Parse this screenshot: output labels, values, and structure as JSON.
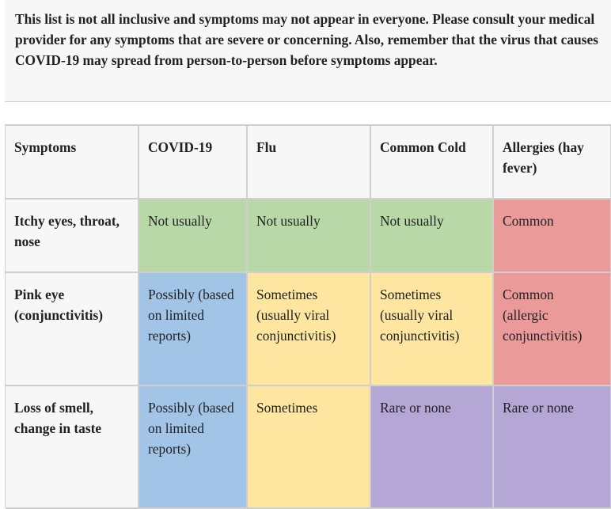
{
  "notice": "This list is not all inclusive and symptoms may not appear in everyone. Please consult your medical provider for any symptoms that are severe or concerning. Also, remember that the virus that causes COVID-19 may spread from person-to-person before symptoms appear.",
  "table": {
    "headers": [
      "Symptoms",
      "COVID-19",
      "Flu",
      "Common Cold",
      "Allergies (hay fever)"
    ],
    "rows": [
      {
        "symptom": "Itchy eyes, throat, nose",
        "cells": [
          "Not usually",
          "Not usually",
          "Not usually",
          "Common"
        ],
        "colors": [
          "green",
          "green",
          "green",
          "red"
        ]
      },
      {
        "symptom": "Pink eye (conjunctivitis)",
        "cells": [
          "Possibly (based on limited reports)",
          "Sometimes (usually viral conjunctivitis)",
          "Sometimes (usually viral conjunctivitis)",
          "Common (allergic conjunctivitis)"
        ],
        "colors": [
          "blue",
          "yellow",
          "yellow",
          "red"
        ]
      },
      {
        "symptom": "Loss of smell, change in taste",
        "cells": [
          "Possibly (based on limited reports)",
          "Sometimes",
          "Rare or none",
          "Rare or none"
        ],
        "colors": [
          "blue",
          "yellow",
          "purple",
          "purple"
        ]
      }
    ]
  },
  "colors": {
    "green": "#b9d8a8",
    "red": "#ea9a99",
    "blue": "#a2c4e7",
    "yellow": "#fee5a0",
    "purple": "#b4a7d5",
    "header_bg": "#f7f7f7"
  }
}
